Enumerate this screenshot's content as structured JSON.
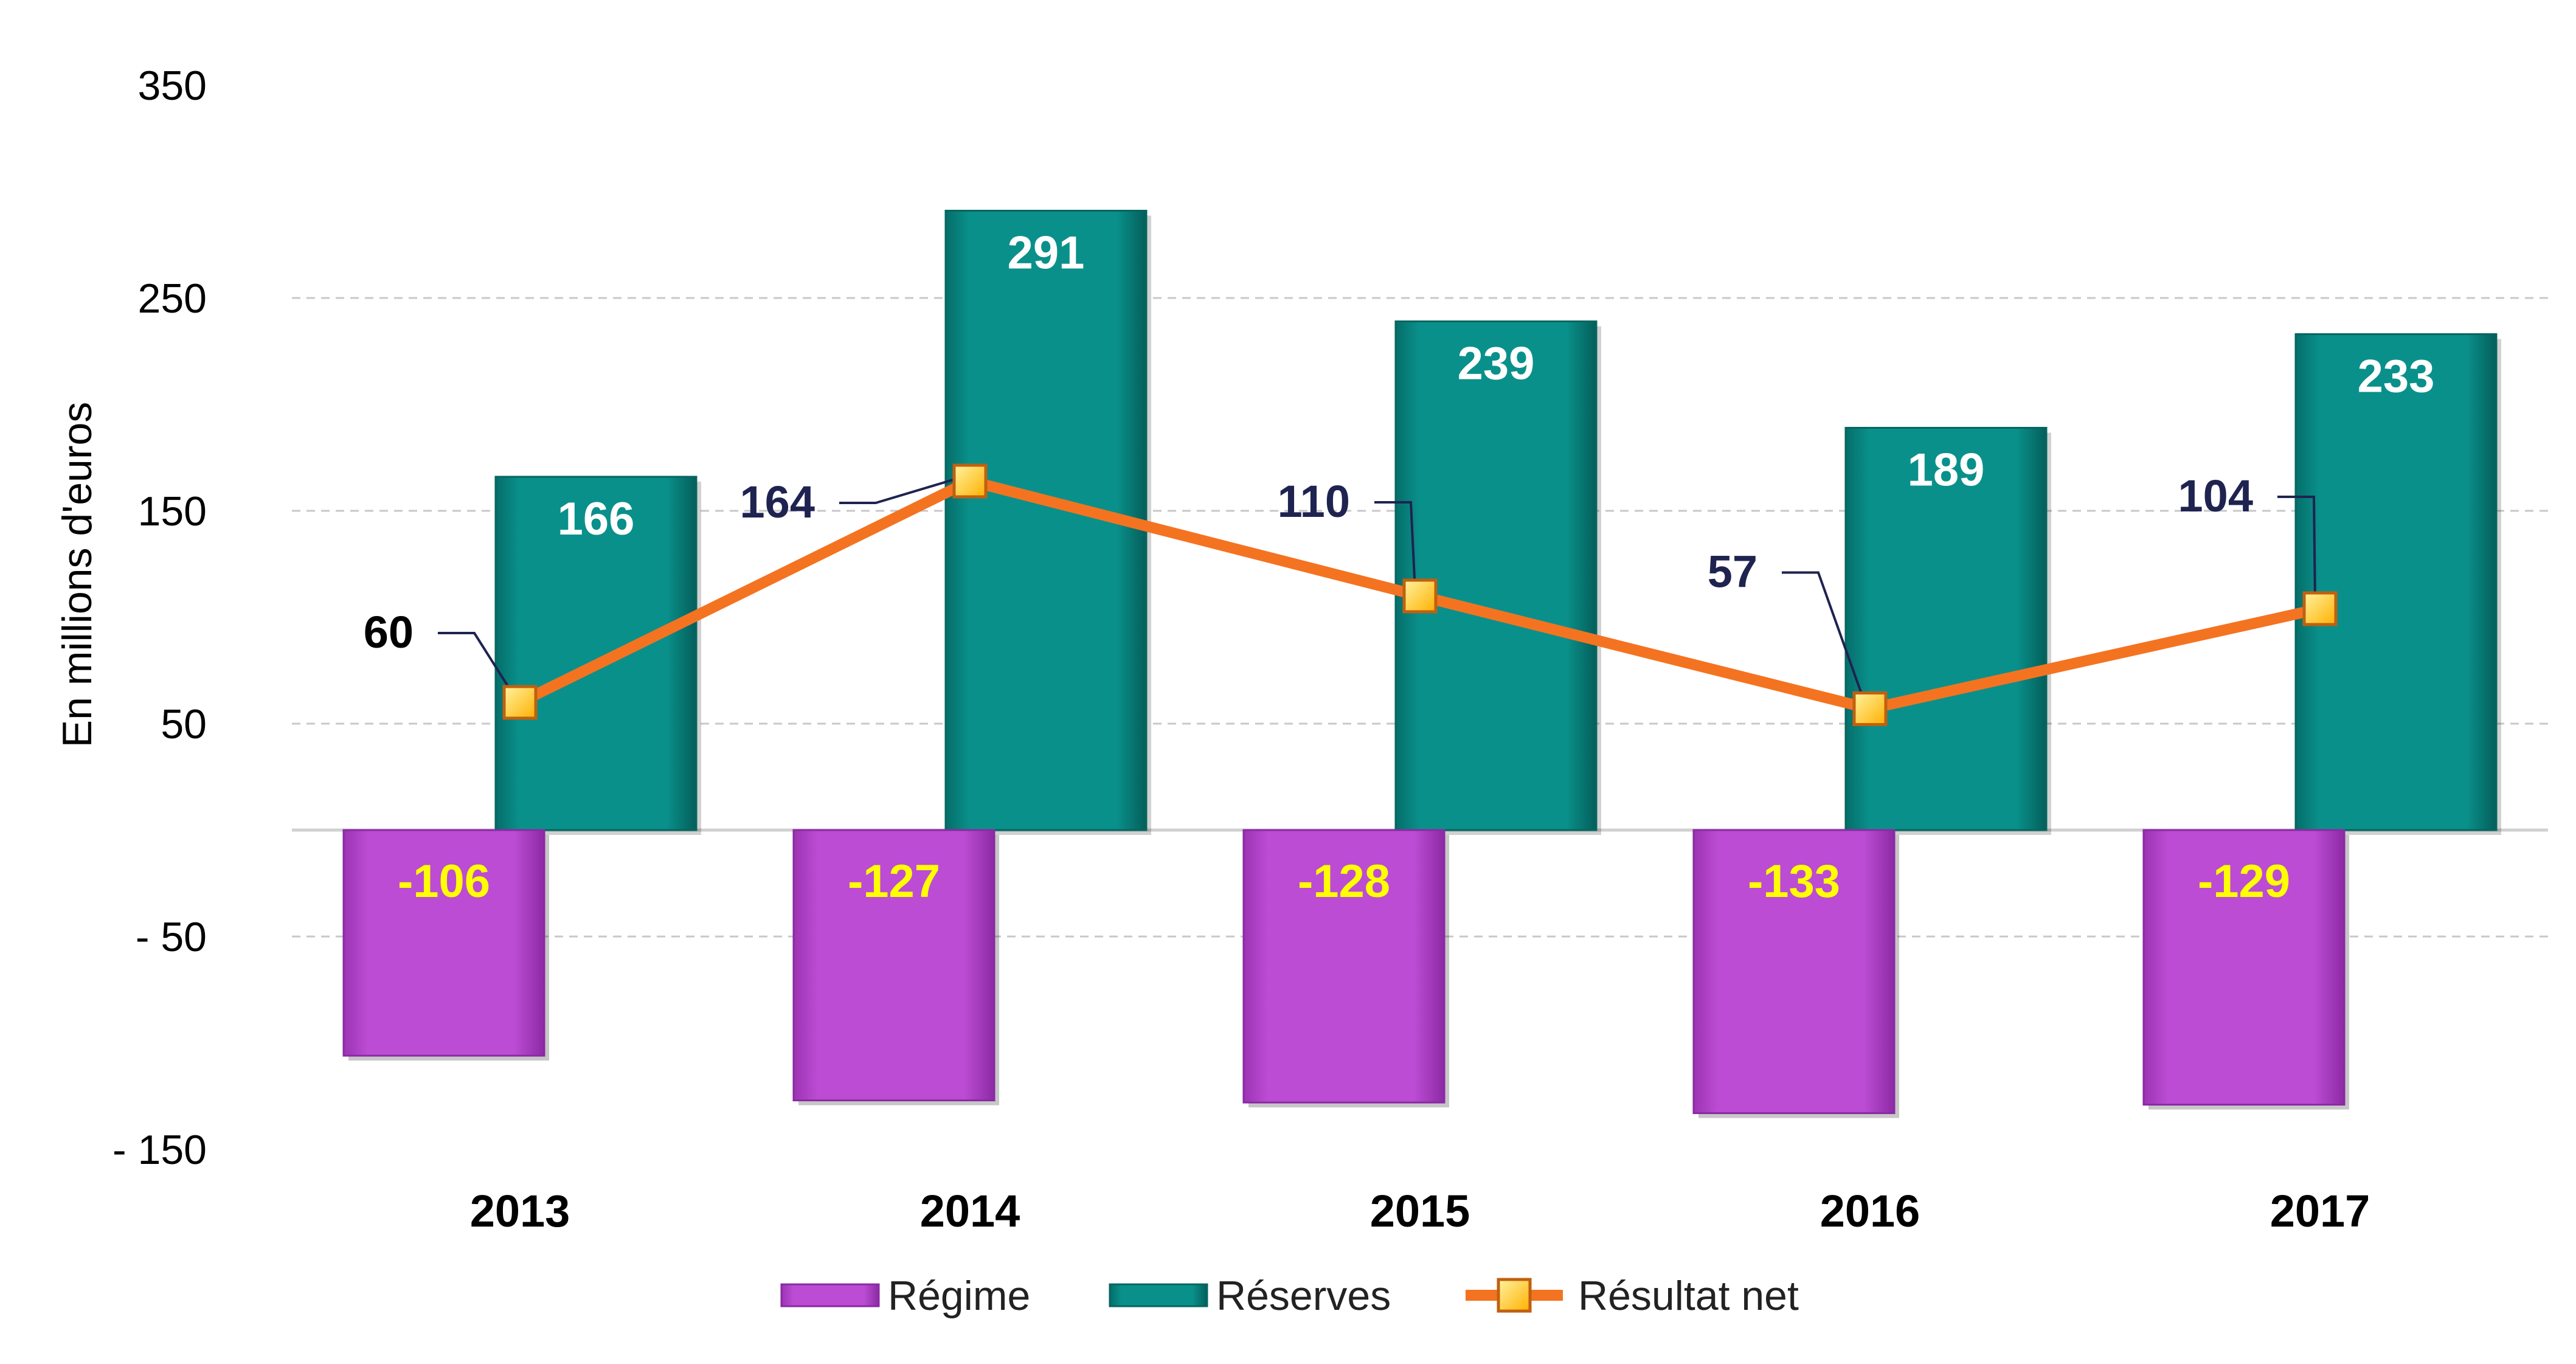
{
  "chart_data": {
    "type": "bar",
    "categories": [
      "2013",
      "2014",
      "2015",
      "2016",
      "2017"
    ],
    "ylabel": "En millions d'euros",
    "ylim": [
      -150,
      350
    ],
    "yticks": [
      350,
      250,
      150,
      50,
      -50,
      -150
    ],
    "ytick_labels": [
      "350",
      "250",
      "150",
      "50",
      "- 50",
      "- 150"
    ],
    "grid": true,
    "legend_position": "bottom",
    "series": [
      {
        "name": "Régime",
        "type": "bar",
        "color": "#b847d0",
        "values": [
          -106,
          -127,
          -128,
          -133,
          -129
        ],
        "labels": [
          "-106",
          "-127",
          "-128",
          "-133",
          "-129"
        ]
      },
      {
        "name": "Réserves",
        "type": "bar",
        "color": "#078a85",
        "values": [
          166,
          291,
          239,
          189,
          233
        ],
        "labels": [
          "166",
          "291",
          "239",
          "189",
          "233"
        ]
      },
      {
        "name": "Résultat net",
        "type": "line",
        "color": "#f47321",
        "marker_color": "#ffc000",
        "values": [
          60,
          164,
          110,
          57,
          104
        ],
        "labels": [
          "60",
          "164",
          "110",
          "57",
          "104"
        ]
      }
    ]
  }
}
